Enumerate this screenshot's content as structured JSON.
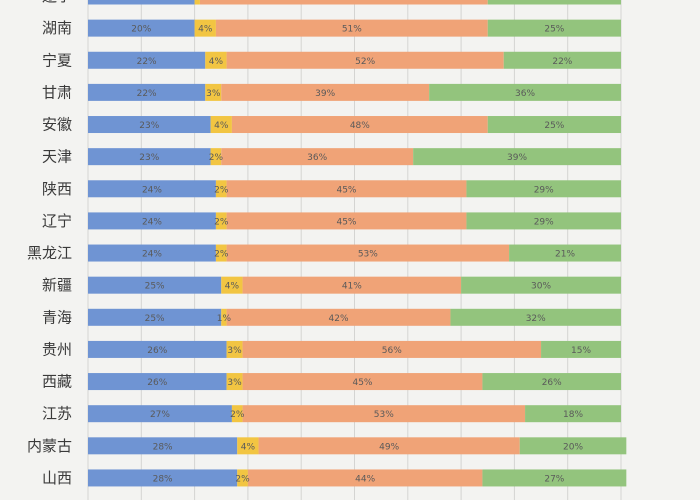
{
  "chart_data": {
    "type": "bar",
    "stacked": true,
    "percent_stacked": true,
    "orientation": "horizontal",
    "xlim": [
      0,
      100
    ],
    "grid": true,
    "categories": [
      "辽宁",
      "湖南",
      "宁夏",
      "甘肃",
      "安徽",
      "天津",
      "陕西",
      "辽宁",
      "黑龙江",
      "新疆",
      "青海",
      "贵州",
      "西藏",
      "江苏",
      "内蒙古",
      "山西"
    ],
    "series": [
      {
        "color": "#6f94d3",
        "values": [
          20,
          20,
          22,
          22,
          23,
          23,
          24,
          24,
          24,
          25,
          25,
          26,
          26,
          27,
          28,
          28
        ]
      },
      {
        "color": "#f2c542",
        "values": [
          1,
          4,
          4,
          3,
          4,
          2,
          2,
          2,
          2,
          4,
          1,
          3,
          3,
          2,
          4,
          2
        ]
      },
      {
        "color": "#f0a377",
        "values": [
          54,
          51,
          52,
          39,
          48,
          36,
          45,
          45,
          53,
          41,
          42,
          56,
          45,
          53,
          49,
          44
        ]
      },
      {
        "color": "#93c47d",
        "values": [
          25,
          25,
          22,
          36,
          25,
          39,
          29,
          29,
          21,
          30,
          32,
          15,
          26,
          18,
          20,
          27
        ]
      }
    ]
  }
}
